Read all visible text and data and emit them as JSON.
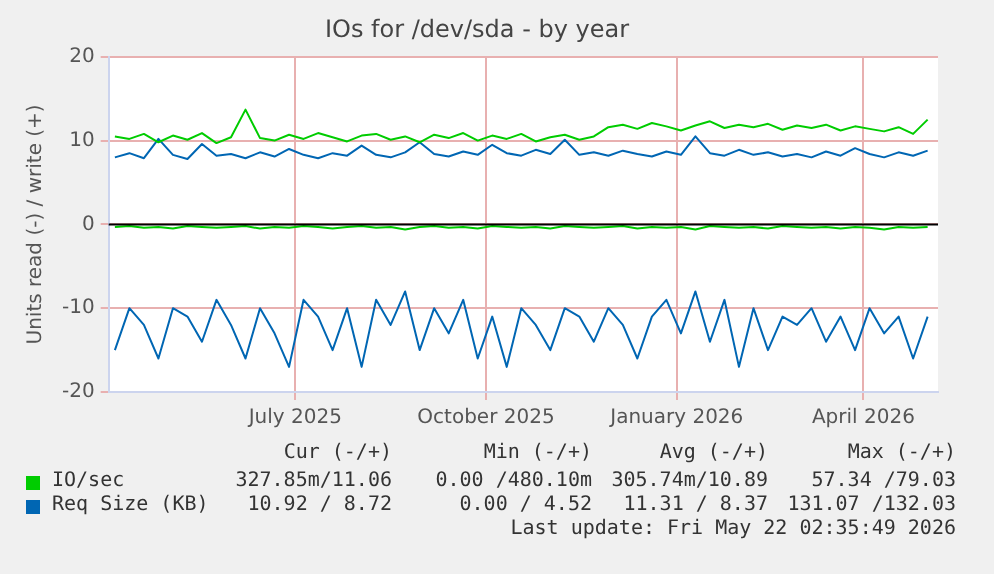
{
  "chart_data": {
    "type": "line",
    "title": "IOs for /dev/sda - by year",
    "ylabel": "Units read (-) / write (+)",
    "x": [
      "2025-04-20",
      "2025-04-27",
      "2025-05-04",
      "2025-05-11",
      "2025-05-18",
      "2025-05-25",
      "2025-06-01",
      "2025-06-08",
      "2025-06-15",
      "2025-06-22",
      "2025-06-29",
      "2025-07-06",
      "2025-07-13",
      "2025-07-20",
      "2025-07-27",
      "2025-08-03",
      "2025-08-10",
      "2025-08-17",
      "2025-08-24",
      "2025-08-31",
      "2025-09-07",
      "2025-09-14",
      "2025-09-21",
      "2025-09-28",
      "2025-10-05",
      "2025-10-12",
      "2025-10-19",
      "2025-10-26",
      "2025-11-02",
      "2025-11-09",
      "2025-11-16",
      "2025-11-23",
      "2025-11-30",
      "2025-12-07",
      "2025-12-14",
      "2025-12-21",
      "2025-12-28",
      "2026-01-04",
      "2026-01-11",
      "2026-01-18",
      "2026-01-25",
      "2026-02-01",
      "2026-02-08",
      "2026-02-15",
      "2026-02-22",
      "2026-03-01",
      "2026-03-08",
      "2026-03-15",
      "2026-03-22",
      "2026-03-29",
      "2026-04-05",
      "2026-04-12",
      "2026-04-19",
      "2026-04-26",
      "2026-05-03",
      "2026-05-10",
      "2026-05-17"
    ],
    "series": [
      {
        "name": "IO/sec",
        "color": "#00cc00",
        "values": [
          10.5,
          10.2,
          10.8,
          9.8,
          10.6,
          10.1,
          10.9,
          9.7,
          10.4,
          13.7,
          10.3,
          10.0,
          10.7,
          10.2,
          10.9,
          10.4,
          9.9,
          10.6,
          10.8,
          10.1,
          10.5,
          9.8,
          10.7,
          10.3,
          10.9,
          10.0,
          10.6,
          10.2,
          10.8,
          9.9,
          10.4,
          10.7,
          10.1,
          10.5,
          11.6,
          11.9,
          11.4,
          12.1,
          11.7,
          11.2,
          11.8,
          12.3,
          11.5,
          11.9,
          11.6,
          12.0,
          11.3,
          11.8,
          11.5,
          11.9,
          11.2,
          11.7,
          11.4,
          11.1,
          11.6,
          10.8,
          12.5
        ]
      },
      {
        "color": "#00cc00",
        "values": [
          -0.3,
          -0.2,
          -0.4,
          -0.3,
          -0.5,
          -0.2,
          -0.3,
          -0.4,
          -0.3,
          -0.2,
          -0.5,
          -0.3,
          -0.4,
          -0.2,
          -0.3,
          -0.5,
          -0.3,
          -0.2,
          -0.4,
          -0.3,
          -0.6,
          -0.3,
          -0.2,
          -0.4,
          -0.3,
          -0.5,
          -0.2,
          -0.3,
          -0.4,
          -0.3,
          -0.5,
          -0.2,
          -0.3,
          -0.4,
          -0.3,
          -0.2,
          -0.5,
          -0.3,
          -0.4,
          -0.3,
          -0.6,
          -0.2,
          -0.3,
          -0.4,
          -0.3,
          -0.5,
          -0.2,
          -0.3,
          -0.4,
          -0.3,
          -0.5,
          -0.3,
          -0.4,
          -0.6,
          -0.3,
          -0.4,
          -0.3
        ]
      },
      {
        "name": "Req Size (KB)",
        "color": "#0066b3",
        "values": [
          8.0,
          8.5,
          7.9,
          10.2,
          8.3,
          7.8,
          9.6,
          8.2,
          8.4,
          7.9,
          8.6,
          8.1,
          9.0,
          8.3,
          7.9,
          8.5,
          8.2,
          9.4,
          8.3,
          8.0,
          8.6,
          9.8,
          8.4,
          8.1,
          8.7,
          8.3,
          9.5,
          8.5,
          8.2,
          8.9,
          8.4,
          10.1,
          8.3,
          8.6,
          8.2,
          8.8,
          8.4,
          8.1,
          8.7,
          8.3,
          10.5,
          8.5,
          8.2,
          8.9,
          8.3,
          8.6,
          8.1,
          8.4,
          8.0,
          8.7,
          8.2,
          9.1,
          8.4,
          8.0,
          8.6,
          8.2,
          8.8
        ]
      },
      {
        "color": "#0066b3",
        "values": [
          -15,
          -10,
          -12,
          -16,
          -10,
          -11,
          -14,
          -9,
          -12,
          -16,
          -10,
          -13,
          -17,
          -9,
          -11,
          -15,
          -10,
          -17,
          -9,
          -12,
          -8,
          -15,
          -10,
          -13,
          -9,
          -16,
          -11,
          -17,
          -10,
          -12,
          -15,
          -10,
          -11,
          -14,
          -10,
          -12,
          -16,
          -11,
          -9,
          -13,
          -8,
          -14,
          -9,
          -17,
          -10,
          -15,
          -11,
          -12,
          -10,
          -14,
          -11,
          -15,
          -10,
          -13,
          -11,
          -16,
          -11
        ]
      }
    ],
    "xlim": [
      "2025-04-17",
      "2026-05-22"
    ],
    "xticks": [
      {
        "value": "2025-07-16",
        "label": "July 2025"
      },
      {
        "value": "2025-10-16",
        "label": "October 2025"
      },
      {
        "value": "2026-01-16",
        "label": "January 2026"
      },
      {
        "value": "2026-04-16",
        "label": "April 2026"
      }
    ],
    "ylim": [
      -20,
      20
    ],
    "yticks": [
      -20,
      -10,
      0,
      10,
      20
    ],
    "ref_lines": [
      {
        "axis": "y",
        "value": 0,
        "color": "#000000"
      }
    ],
    "grid": true,
    "legend": "bottom",
    "marker": "none",
    "line_style": "solid",
    "annotations": [
      "Cur (-/+)",
      "Min (-/+)",
      "Avg (-/+)",
      "Max (-/+)",
      "327.85m/11.06",
      "0.00 /480.10m",
      "305.74m/10.89",
      "57.34 /79.03",
      "10.92 / 8.72",
      "0.00 / 4.52",
      "11.31 / 8.37",
      "131.07 /132.03",
      "Last update: Fri May 22 02:35:49 2026"
    ]
  }
}
